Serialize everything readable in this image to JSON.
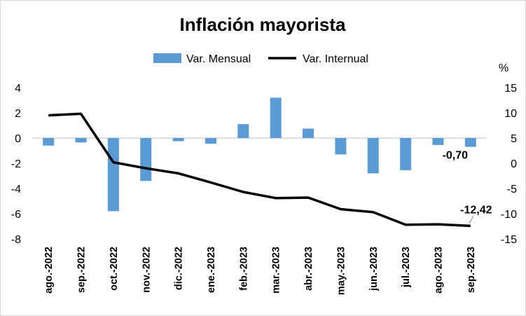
{
  "chart_data": {
    "type": "bar+line",
    "title": "Inflación mayorista",
    "categories": [
      "ago.-2022",
      "sep.-2022",
      "oct.-2022",
      "nov.-2022",
      "dic.-2022",
      "ene.-2023",
      "feb.-2023",
      "mar.-2023",
      "abr.-2023",
      "may.-2023",
      "jun.-2023",
      "jul.-2023",
      "ago.-2023",
      "sep.-2023"
    ],
    "series": [
      {
        "name": "Var. Mensual",
        "type": "bar",
        "axis": "left",
        "color": "#5b9bd5",
        "values": [
          -0.6,
          -0.35,
          -5.8,
          -3.4,
          -0.25,
          -0.45,
          1.1,
          3.2,
          0.75,
          -1.3,
          -2.8,
          -2.55,
          -0.55,
          -0.7
        ]
      },
      {
        "name": "Var. Internual",
        "type": "line",
        "axis": "right",
        "color": "#000000",
        "values": [
          9.5,
          9.8,
          0.2,
          -1.0,
          -2.0,
          -3.8,
          -5.7,
          -6.9,
          -6.8,
          -9.1,
          -9.7,
          -12.2,
          -12.1,
          -12.42
        ]
      }
    ],
    "left_axis": {
      "ylim": [
        -8,
        4
      ],
      "ticks": [
        -8,
        -6,
        -4,
        -2,
        0,
        2,
        4
      ]
    },
    "right_axis": {
      "label": "%",
      "ylim": [
        -15,
        15
      ],
      "ticks": [
        -15,
        -10,
        -5,
        0,
        5,
        10,
        15
      ]
    },
    "annotations": [
      {
        "series": "Var. Mensual",
        "index": 13,
        "text": "-0,70"
      },
      {
        "series": "Var. Internual",
        "index": 13,
        "text": "-12,42"
      }
    ],
    "legend": "top",
    "grid": false
  }
}
